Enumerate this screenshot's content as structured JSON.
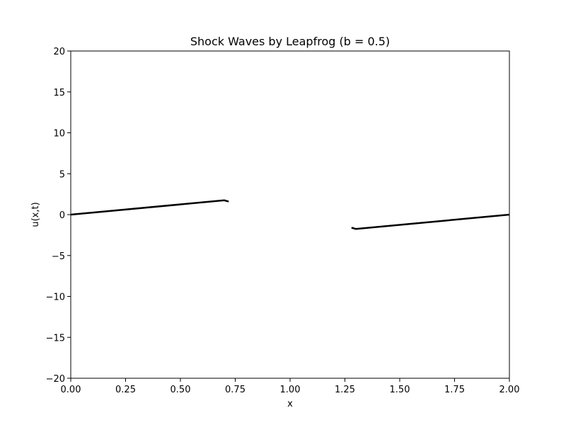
{
  "chart_data": {
    "type": "line",
    "title": "Shock Waves by Leapfrog (b = 0.5)",
    "xlabel": "x",
    "ylabel": "u(x,t)",
    "xlim": [
      0,
      2
    ],
    "ylim": [
      -20,
      20
    ],
    "grid": false,
    "x_ticks": [
      0,
      0.25,
      0.5,
      0.75,
      1,
      1.25,
      1.5,
      1.75,
      2
    ],
    "x_tick_labels": [
      "0.00",
      "0.25",
      "0.50",
      "0.75",
      "1.00",
      "1.25",
      "1.50",
      "1.75",
      "2.00"
    ],
    "y_ticks": [
      -20,
      -15,
      -10,
      -5,
      0,
      5,
      10,
      15,
      20
    ],
    "y_tick_labels": [
      "−20",
      "−15",
      "−10",
      "−5",
      "0",
      "5",
      "10",
      "15",
      "20"
    ],
    "line_color": "#000000",
    "series": [
      {
        "x": [
          0.0,
          0.7,
          0.72
        ],
        "y": [
          0.0,
          1.75,
          1.6
        ]
      },
      {
        "x": [
          1.28,
          1.3,
          2.0
        ],
        "y": [
          -1.6,
          -1.75,
          0.0
        ]
      }
    ]
  }
}
